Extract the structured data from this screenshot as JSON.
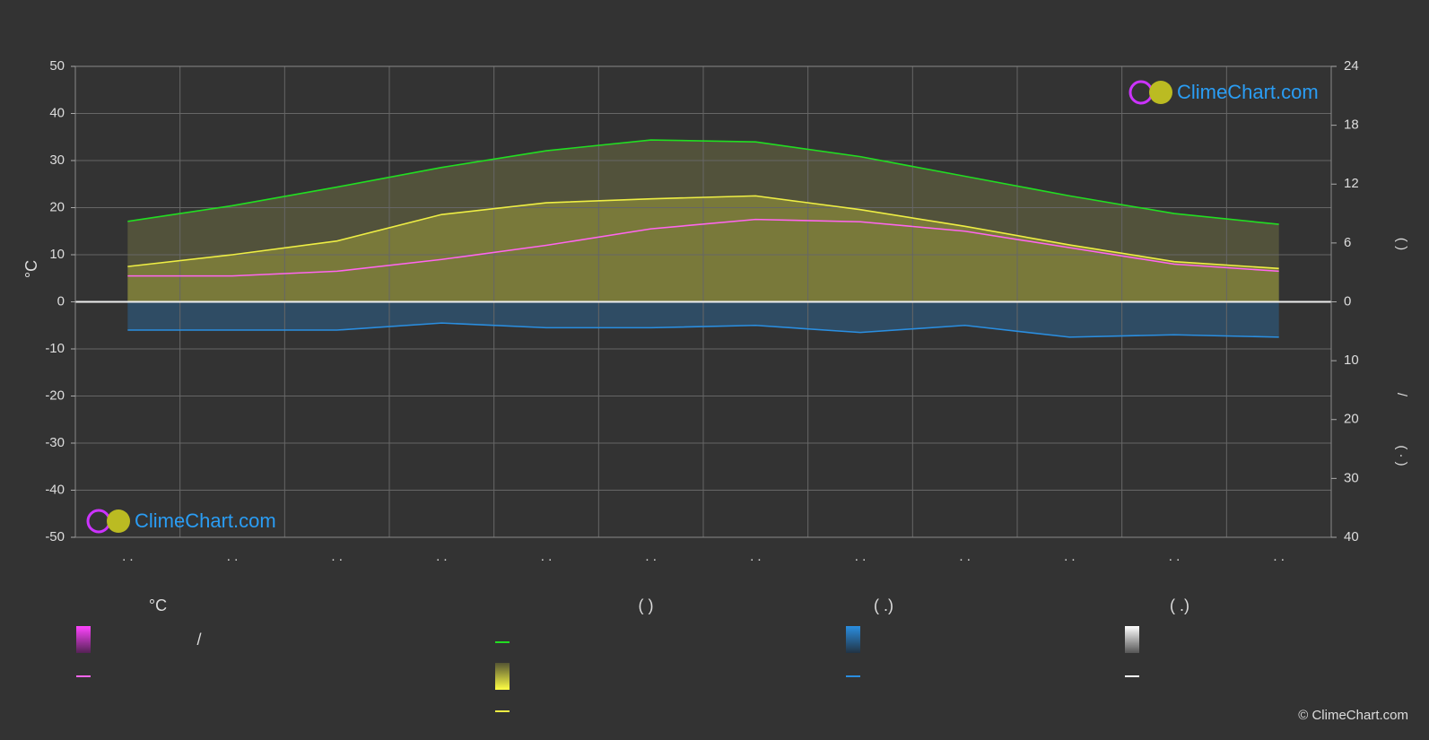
{
  "chart_data": {
    "type": "line",
    "ylabel": "°C",
    "y2label_top": "(          )",
    "y2label_mid": "/",
    "y2label_bottom": "( · )",
    "categories": [
      ". .",
      ". .",
      ". .",
      ". .",
      ". .",
      ". .",
      ". .",
      ". .",
      ". .",
      ". .",
      ". .",
      ". ."
    ],
    "ylim": [
      -50,
      50
    ],
    "yticks": [
      50,
      40,
      30,
      20,
      10,
      0,
      -10,
      -20,
      -30,
      -40,
      -50
    ],
    "y2lim": [
      0,
      24
    ],
    "y2ticks": [
      24,
      18,
      12,
      6,
      0
    ],
    "y3lim": [
      0,
      40
    ],
    "y3ticks": [
      0,
      10,
      20,
      30,
      40
    ],
    "grid": true,
    "series": [
      {
        "color": "#22dd22",
        "axis": "y2",
        "values": [
          8.2,
          9.8,
          11.7,
          13.7,
          15.4,
          16.5,
          16.3,
          14.8,
          12.8,
          10.8,
          9.0,
          7.9
        ]
      },
      {
        "color": "#eeee44",
        "axis": "y2",
        "values": [
          3.6,
          4.8,
          6.2,
          8.9,
          10.1,
          10.5,
          10.8,
          9.4,
          7.7,
          5.8,
          4.1,
          3.4
        ]
      },
      {
        "color": "#ff66ee",
        "axis": "y",
        "values": [
          5.5,
          5.5,
          6.5,
          9,
          12,
          15.5,
          17.5,
          17,
          15,
          11.5,
          8,
          6.5
        ]
      },
      {
        "color": "#2a8ee0",
        "axis": "y3",
        "values": [
          4.8,
          4.8,
          4.8,
          3.6,
          4.4,
          4.4,
          4.0,
          5.2,
          4.0,
          6.0,
          5.6,
          6.0
        ]
      }
    ],
    "legend_headers": [
      "°C",
      "(          )",
      "(   .)",
      "(   .)"
    ],
    "legend_slash": "/",
    "logo": "ClimeChart.com",
    "copyright": "© ClimeChart.com"
  }
}
